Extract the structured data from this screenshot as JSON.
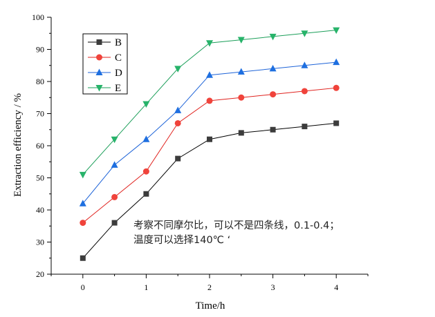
{
  "chart_data": {
    "type": "line",
    "xlabel": "Time/h",
    "ylabel": "Extraction efficiency / %",
    "xlim": [
      -0.5,
      4.5
    ],
    "ylim": [
      20,
      100
    ],
    "x_ticks": [
      0,
      1,
      2,
      3,
      4
    ],
    "y_ticks": [
      20,
      30,
      40,
      50,
      60,
      70,
      80,
      90,
      100
    ],
    "grid": false,
    "legend_position": "top-left",
    "x": [
      0,
      0.5,
      1,
      1.5,
      2,
      2.5,
      3,
      3.5,
      4
    ],
    "series": [
      {
        "name": "B",
        "color": "#000000",
        "fill": "#3c3c3c",
        "marker": "square",
        "values": [
          25,
          36,
          45,
          56,
          62,
          64,
          65,
          66,
          67
        ]
      },
      {
        "name": "C",
        "color": "#e0211d",
        "fill": "#f0433b",
        "marker": "circle",
        "values": [
          36,
          44,
          52,
          67,
          74,
          75,
          76,
          77,
          78
        ]
      },
      {
        "name": "D",
        "color": "#1d63d8",
        "fill": "#1e6fe0",
        "marker": "triangle-up",
        "values": [
          42,
          54,
          62,
          71,
          82,
          83,
          84,
          85,
          86
        ]
      },
      {
        "name": "E",
        "color": "#1a9e58",
        "fill": "#27b36a",
        "marker": "triangle-down",
        "values": [
          51,
          62,
          73,
          84,
          92,
          93,
          94,
          95,
          96
        ]
      }
    ],
    "annotation": [
      "考察不同摩尔比，可以不是四条线，0.1-0.4；",
      "温度可以选择140℃ ‘"
    ]
  }
}
